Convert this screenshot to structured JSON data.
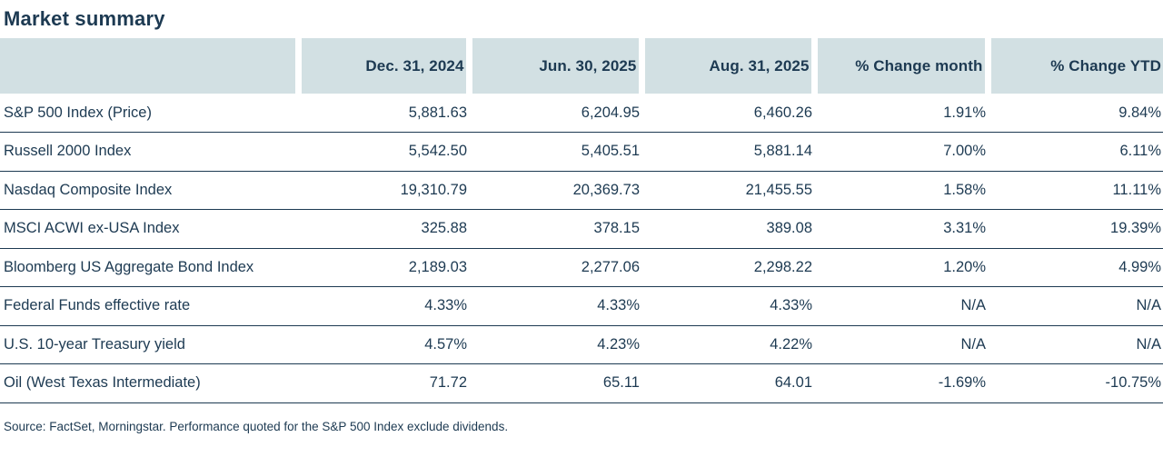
{
  "title": "Market summary",
  "colors": {
    "text": "#1d3a52",
    "header_background": "#d2e0e3",
    "row_divider": "#1d3a52",
    "page_background": "#ffffff"
  },
  "chart_data": {
    "type": "table",
    "title": "Market summary",
    "columns": [
      "",
      "Dec. 31, 2024",
      "Jun. 30, 2025",
      "Aug. 31, 2025",
      "% Change month",
      "% Change YTD"
    ],
    "rows": [
      {
        "label": "S&P 500 Index (Price)",
        "values": [
          "5,881.63",
          "6,204.95",
          "6,460.26",
          "1.91%",
          "9.84%"
        ]
      },
      {
        "label": "Russell 2000 Index",
        "values": [
          "5,542.50",
          "5,405.51",
          "5,881.14",
          "7.00%",
          "6.11%"
        ]
      },
      {
        "label": "Nasdaq Composite Index",
        "values": [
          "19,310.79",
          "20,369.73",
          "21,455.55",
          "1.58%",
          "11.11%"
        ]
      },
      {
        "label": "MSCI ACWI ex-USA Index",
        "values": [
          "325.88",
          "378.15",
          "389.08",
          "3.31%",
          "19.39%"
        ]
      },
      {
        "label": "Bloomberg US Aggregate Bond Index",
        "values": [
          "2,189.03",
          "2,277.06",
          "2,298.22",
          "1.20%",
          "4.99%"
        ]
      },
      {
        "label": "Federal Funds effective rate",
        "values": [
          "4.33%",
          "4.33%",
          "4.33%",
          "N/A",
          "N/A"
        ]
      },
      {
        "label": "U.S. 10-year Treasury yield",
        "values": [
          "4.57%",
          "4.23%",
          "4.22%",
          "N/A",
          "N/A"
        ]
      },
      {
        "label": "Oil (West Texas Intermediate)",
        "values": [
          "71.72",
          "65.11",
          "64.01",
          "-1.69%",
          "-10.75%"
        ]
      }
    ],
    "source": "Source: FactSet, Morningstar. Performance quoted for the S&P 500 Index exclude dividends."
  }
}
